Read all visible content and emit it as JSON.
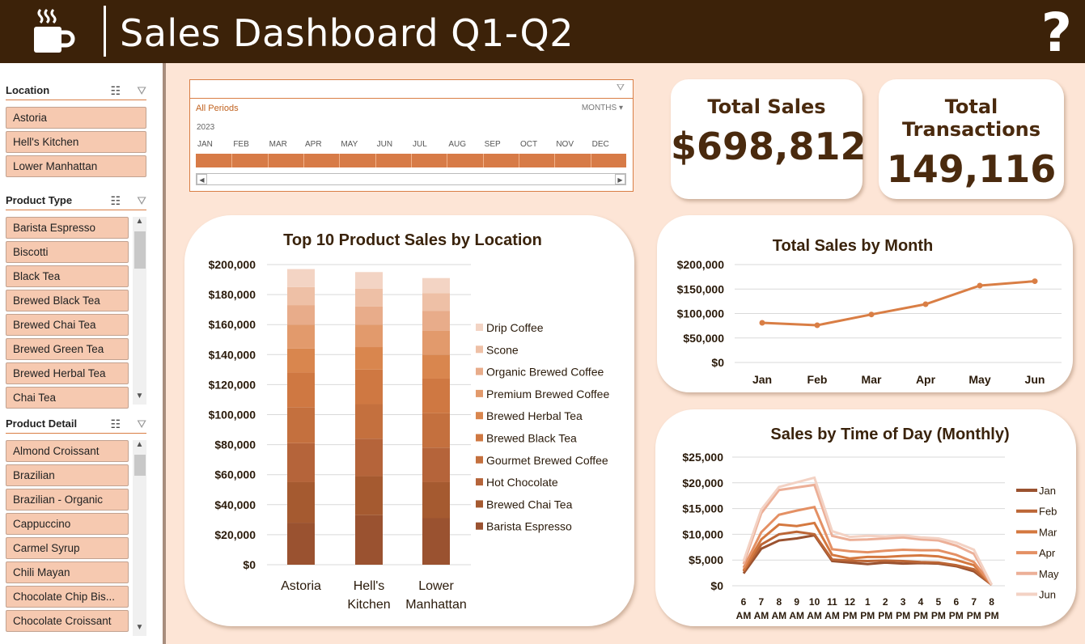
{
  "header": {
    "title": "Sales Dashboard Q1-Q2",
    "help_glyph": "?",
    "logo": "coffee-cup-icon"
  },
  "slicers": {
    "location": {
      "title": "Location",
      "items": [
        "Astoria",
        "Hell's Kitchen",
        "Lower Manhattan"
      ]
    },
    "product_type": {
      "title": "Product Type",
      "items": [
        "Barista Espresso",
        "Biscotti",
        "Black Tea",
        "Brewed Black Tea",
        "Brewed Chai Tea",
        "Brewed Green Tea",
        "Brewed Herbal Tea",
        "Chai Tea"
      ]
    },
    "product_detail": {
      "title": "Product Detail",
      "items": [
        "Almond Croissant",
        "Brazilian",
        "Brazilian - Organic",
        "Cappuccino",
        "Carmel Syrup",
        "Chili Mayan",
        "Chocolate Chip Bis...",
        "Chocolate Croissant"
      ]
    }
  },
  "timeline": {
    "period": "All Periods",
    "level": "MONTHS",
    "year": "2023",
    "months": [
      "JAN",
      "FEB",
      "MAR",
      "APR",
      "MAY",
      "JUN",
      "JUL",
      "AUG",
      "SEP",
      "OCT",
      "NOV",
      "DEC"
    ]
  },
  "kpis": {
    "total_sales_label": "Total Sales",
    "total_sales_value": "$698,812",
    "total_transactions_label": "Total Transactions",
    "total_transactions_value": "149,116"
  },
  "colors": {
    "header": "#3c2209",
    "accent": "#d97e45",
    "background": "#fde5d6",
    "kpi_text": "#4a2a0e"
  },
  "chart_data": [
    {
      "type": "bar",
      "stacked": true,
      "title": "Top 10 Product Sales by Location",
      "categories": [
        "Astoria",
        "Hell's Kitchen",
        "Lower Manhattan"
      ],
      "ylim": [
        0,
        200000
      ],
      "yticks": [
        "$0",
        "$20,000",
        "$40,000",
        "$60,000",
        "$80,000",
        "$100,000",
        "$120,000",
        "$140,000",
        "$160,000",
        "$180,000",
        "$200,000"
      ],
      "legend_position": "right",
      "series": [
        {
          "name": "Barista Espresso",
          "color": "#9a5230",
          "values": [
            28000,
            33000,
            31000
          ]
        },
        {
          "name": "Brewed Chai Tea",
          "color": "#a55a30",
          "values": [
            27000,
            26000,
            24000
          ]
        },
        {
          "name": "Hot Chocolate",
          "color": "#b5643a",
          "values": [
            26000,
            25000,
            23000
          ]
        },
        {
          "name": "Gourmet Brewed Coffee",
          "color": "#c4703e",
          "values": [
            24000,
            23000,
            23000
          ]
        },
        {
          "name": "Brewed Black Tea",
          "color": "#cf7842",
          "values": [
            23000,
            23000,
            23000
          ]
        },
        {
          "name": "Brewed Herbal Tea",
          "color": "#d9864e",
          "values": [
            16000,
            15000,
            16000
          ]
        },
        {
          "name": "Premium Brewed Coffee",
          "color": "#e29a6c",
          "values": [
            16000,
            15000,
            16000
          ]
        },
        {
          "name": "Organic Brewed Coffee",
          "color": "#e8ac8a",
          "values": [
            13000,
            12000,
            13000
          ]
        },
        {
          "name": "Scone",
          "color": "#eec0a6",
          "values": [
            12000,
            12000,
            12000
          ]
        },
        {
          "name": "Drip Coffee",
          "color": "#f3d4c4",
          "values": [
            12000,
            11000,
            10000
          ]
        }
      ]
    },
    {
      "type": "line",
      "title": "Total Sales by Month",
      "categories": [
        "Jan",
        "Feb",
        "Mar",
        "Apr",
        "May",
        "Jun"
      ],
      "values": [
        81000,
        76000,
        98000,
        119000,
        157000,
        166000
      ],
      "ylim": [
        0,
        200000
      ],
      "yticks": [
        "$0",
        "$50,000",
        "$100,000",
        "$150,000",
        "$200,000"
      ],
      "color": "#d97e45"
    },
    {
      "type": "line",
      "title": "Sales by Time of Day (Monthly)",
      "categories": [
        "6 AM",
        "7 AM",
        "8 AM",
        "9 AM",
        "10 AM",
        "11 AM",
        "12 PM",
        "1 PM",
        "2 PM",
        "3 PM",
        "4 PM",
        "5 PM",
        "6 PM",
        "7 PM",
        "8 PM"
      ],
      "ylim": [
        0,
        25000
      ],
      "yticks": [
        "$0",
        "$5,000",
        "$10,000",
        "$15,000",
        "$20,000",
        "$25,000"
      ],
      "legend_position": "right",
      "series": [
        {
          "name": "Jan",
          "color": "#9a5230",
          "values": [
            2400,
            7200,
            8800,
            9200,
            9800,
            4800,
            4500,
            4200,
            4500,
            4300,
            4400,
            4300,
            3800,
            2800,
            200
          ]
        },
        {
          "name": "Feb",
          "color": "#bc6636",
          "values": [
            2800,
            8000,
            10000,
            10500,
            10000,
            5100,
            4900,
            4800,
            4900,
            4800,
            4600,
            4500,
            4000,
            3200,
            200
          ]
        },
        {
          "name": "Mar",
          "color": "#d4783f",
          "values": [
            3000,
            9000,
            11900,
            11600,
            12200,
            6000,
            5300,
            5600,
            5600,
            5800,
            5900,
            5700,
            5000,
            4000,
            200
          ]
        },
        {
          "name": "Apr",
          "color": "#e49064",
          "values": [
            3500,
            10400,
            13800,
            14600,
            15300,
            7100,
            6700,
            6500,
            6800,
            7000,
            6900,
            6900,
            6000,
            4600,
            200
          ]
        },
        {
          "name": "May",
          "color": "#ecaf97",
          "values": [
            4200,
            14100,
            18600,
            19100,
            19600,
            9700,
            8900,
            9000,
            9200,
            9400,
            9000,
            8800,
            7800,
            6200,
            200
          ]
        },
        {
          "name": "Jun",
          "color": "#f3d2c4",
          "values": [
            4800,
            14800,
            19200,
            20100,
            21000,
            10600,
            9500,
            9700,
            9600,
            9800,
            9400,
            9200,
            8400,
            7000,
            200
          ]
        }
      ]
    }
  ]
}
